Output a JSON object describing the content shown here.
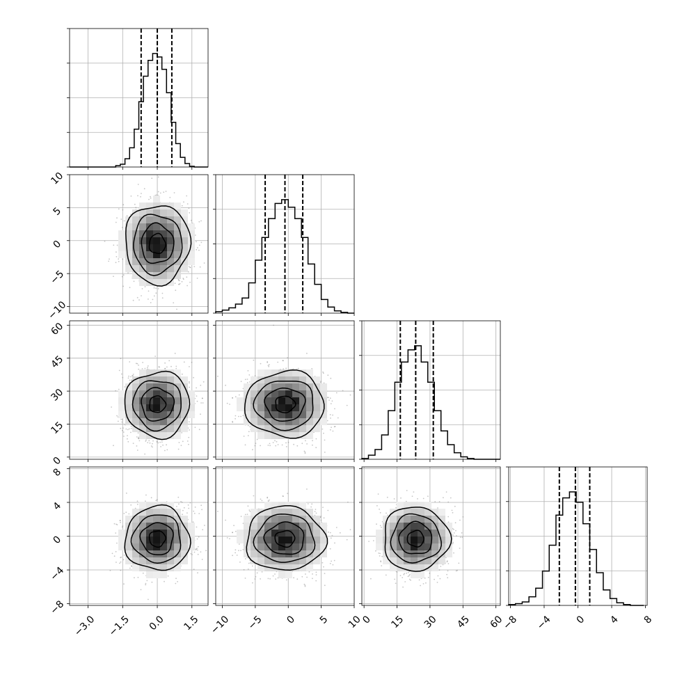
{
  "chart_data": {
    "type": "corner",
    "grid": true,
    "parameters": [
      {
        "range": [
          -3.8,
          2.2
        ],
        "ticks": [
          -3.0,
          -1.5,
          0.0,
          1.5
        ],
        "tick_labels": [
          "−3.0",
          "−1.5",
          "0.0",
          "1.5"
        ],
        "quantiles": [
          -0.7,
          0.0,
          0.63
        ],
        "hist_bins": [
          -3.8,
          -3.6,
          -3.4,
          -3.2,
          -3.0,
          -2.8,
          -2.6,
          -2.4,
          -2.2,
          -2.0,
          -1.8,
          -1.6,
          -1.4,
          -1.2,
          -1.0,
          -0.8,
          -0.6,
          -0.4,
          -0.2,
          0.0,
          0.2,
          0.4,
          0.6,
          0.8,
          1.0,
          1.2,
          1.4,
          1.6,
          1.8,
          2.0,
          2.2
        ],
        "hist_counts": [
          0,
          0,
          0,
          0,
          0,
          0,
          0,
          0,
          0,
          0,
          2,
          4,
          12,
          28,
          55,
          95,
          132,
          155,
          165,
          160,
          142,
          108,
          65,
          34,
          14,
          5,
          1,
          0,
          0,
          0
        ]
      },
      {
        "range": [
          -11,
          10
        ],
        "ticks": [
          -10,
          -5,
          0,
          5,
          10
        ],
        "tick_labels": [
          "−10",
          "−5",
          "0",
          "5",
          "10"
        ],
        "quantiles": [
          -3.5,
          -0.5,
          2.2
        ],
        "hist_bins": [
          -11,
          -10,
          -9,
          -8,
          -7,
          -6,
          -5,
          -4,
          -3,
          -2,
          -1,
          0,
          1,
          2,
          3,
          4,
          5,
          6,
          7,
          8,
          9,
          10
        ],
        "hist_counts": [
          2,
          4,
          7,
          12,
          20,
          40,
          70,
          100,
          125,
          145,
          150,
          140,
          125,
          100,
          65,
          38,
          18,
          8,
          3,
          1,
          0
        ]
      },
      {
        "range": [
          -1,
          62
        ],
        "ticks": [
          0,
          15,
          30,
          45,
          60
        ],
        "tick_labels": [
          "0",
          "15",
          "30",
          "45",
          "60"
        ],
        "quantiles": [
          16.5,
          23.5,
          31.5
        ],
        "hist_bins": [
          -1,
          2,
          5,
          8,
          11,
          14,
          17,
          20,
          23,
          26,
          29,
          32,
          35,
          38,
          41,
          44,
          47,
          50,
          53,
          56,
          59,
          62
        ],
        "hist_counts": [
          1,
          5,
          12,
          30,
          60,
          95,
          120,
          135,
          140,
          120,
          95,
          60,
          35,
          18,
          8,
          3,
          1,
          0,
          0,
          0,
          0
        ]
      },
      {
        "range": [
          -8.2,
          8.2
        ],
        "ticks": [
          -8,
          -4,
          0,
          4,
          8
        ],
        "tick_labels": [
          "−8",
          "−4",
          "0",
          "4",
          "8"
        ],
        "quantiles": [
          -2.2,
          -0.3,
          1.4
        ],
        "hist_bins": [
          -8.2,
          -7.4,
          -6.6,
          -5.8,
          -5.0,
          -4.2,
          -3.4,
          -2.6,
          -1.8,
          -1.0,
          -0.2,
          0.6,
          1.4,
          2.2,
          3.0,
          3.8,
          4.6,
          5.4,
          6.2,
          7.0,
          7.8
        ],
        "hist_counts": [
          1,
          2,
          4,
          10,
          20,
          40,
          70,
          105,
          125,
          132,
          120,
          95,
          65,
          38,
          18,
          8,
          3,
          1,
          0,
          0
        ]
      }
    ],
    "pairs": [
      {
        "row": 1,
        "col": 0,
        "center": [
          0.0,
          -0.5
        ],
        "sigma": [
          0.7,
          3.0
        ]
      },
      {
        "row": 2,
        "col": 0,
        "center": [
          0.0,
          24.0
        ],
        "sigma": [
          0.7,
          7.5
        ]
      },
      {
        "row": 2,
        "col": 1,
        "center": [
          -0.5,
          24.0
        ],
        "sigma": [
          3.0,
          7.5
        ]
      },
      {
        "row": 3,
        "col": 0,
        "center": [
          0.0,
          -0.3
        ],
        "sigma": [
          0.7,
          1.9
        ]
      },
      {
        "row": 3,
        "col": 1,
        "center": [
          -0.5,
          -0.3
        ],
        "sigma": [
          3.0,
          1.9
        ]
      },
      {
        "row": 3,
        "col": 2,
        "center": [
          23.5,
          -0.3
        ],
        "sigma": [
          7.5,
          1.9
        ]
      }
    ],
    "contour_levels_sigma": [
      0.5,
      1.0,
      1.5,
      2.0
    ],
    "colors": {
      "line": "#000000",
      "scatter": "#808080",
      "grid": "#b0b0b0"
    }
  }
}
